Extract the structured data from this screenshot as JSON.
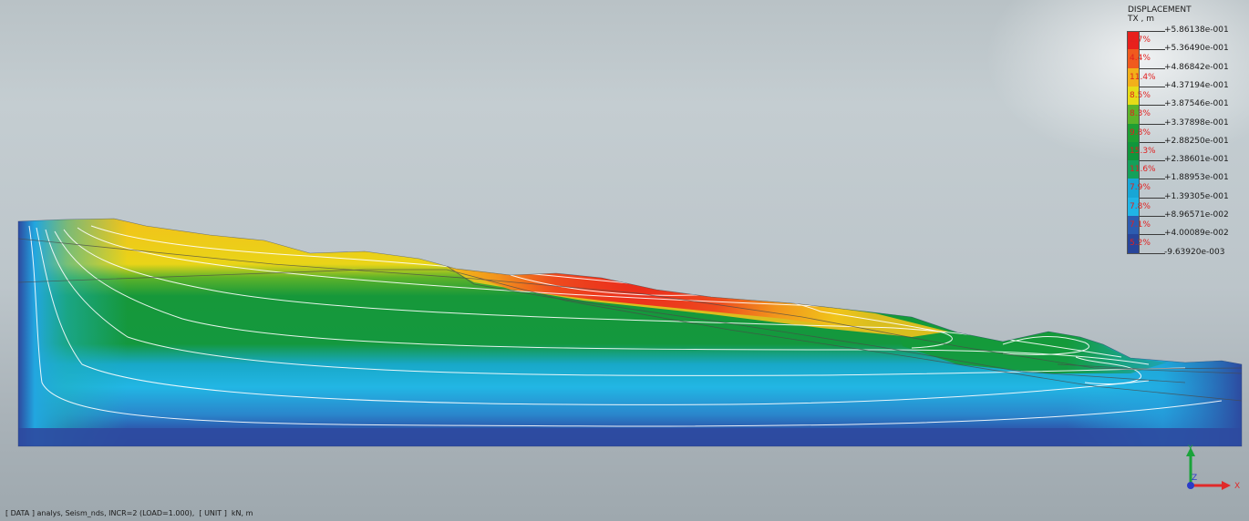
{
  "viewport": {
    "background": "#bcc5ca"
  },
  "legend": {
    "title": "DISPLACEMENT",
    "unit": "TX , m",
    "levels": [
      "+5.86138e-001",
      "+5.36490e-001",
      "+4.86842e-001",
      "+4.37194e-001",
      "+3.87546e-001",
      "+3.37898e-001",
      "+2.88250e-001",
      "+2.38601e-001",
      "+1.88953e-001",
      "+1.39305e-001",
      "+8.96571e-002",
      "+4.00089e-002",
      "-9.63920e-003"
    ],
    "bands": [
      {
        "percent": "2.7%",
        "color": "#e8201c"
      },
      {
        "percent": "4.4%",
        "color": "#f05a1e"
      },
      {
        "percent": "11.4%",
        "color": "#f2b01a"
      },
      {
        "percent": "8.5%",
        "color": "#e6dc18"
      },
      {
        "percent": "8.3%",
        "color": "#5cb32a"
      },
      {
        "percent": "9.8%",
        "color": "#1e9e33"
      },
      {
        "percent": "15.3%",
        "color": "#10963c"
      },
      {
        "percent": "11.6%",
        "color": "#14a05a"
      },
      {
        "percent": "7.9%",
        "color": "#18a6d6"
      },
      {
        "percent": "7.8%",
        "color": "#20b4e6"
      },
      {
        "percent": "7.1%",
        "color": "#2c5cb0"
      },
      {
        "percent": "5.2%",
        "color": "#28459a"
      }
    ]
  },
  "model": {
    "colors": {
      "base": "#2d4aa0",
      "cyan": "#22b6e4",
      "green": "#14983a",
      "yellow": "#efc21c",
      "orange": "#f08a1c",
      "red": "#ea2a1c"
    }
  },
  "triad": {
    "x_label": "X",
    "y_label": "Y",
    "z_label": "Z",
    "x_color": "#e02a2a",
    "y_color": "#1aa33a",
    "z_color": "#2a3cc8"
  },
  "status": {
    "text": "[ DATA ] analys, Seism_nds, INCR=2 (LOAD=1.000),  [ UNIT ]  kN, m"
  }
}
